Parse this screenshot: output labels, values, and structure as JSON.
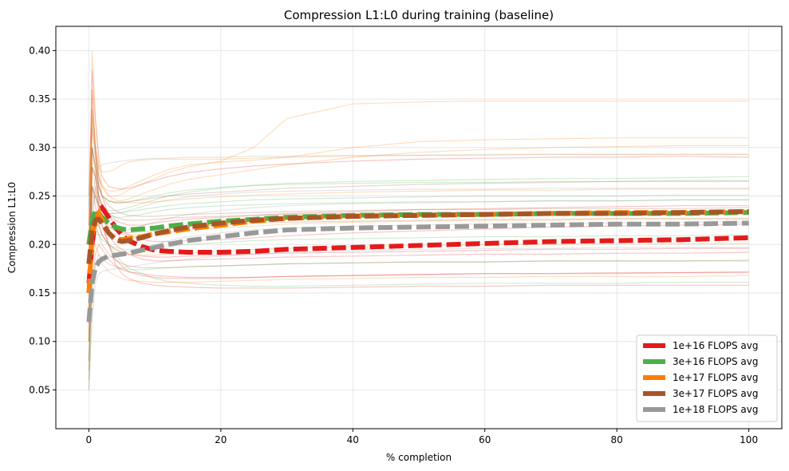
{
  "chart_data": {
    "type": "line",
    "title": "Compression L1:L0 during training (baseline)",
    "xlabel": "% completion",
    "ylabel": "Compression L1:L0",
    "xlim": [
      -5,
      105
    ],
    "ylim": [
      0.01,
      0.425
    ],
    "xticks": [
      0,
      20,
      40,
      60,
      80,
      100
    ],
    "xtick_labels": [
      "0",
      "20",
      "40",
      "60",
      "80",
      "100"
    ],
    "yticks": [
      0.05,
      0.1,
      0.15,
      0.2,
      0.25,
      0.3,
      0.35,
      0.4
    ],
    "ytick_labels": [
      "0.05",
      "0.10",
      "0.15",
      "0.20",
      "0.25",
      "0.30",
      "0.35",
      "0.40"
    ],
    "grid": true,
    "legend_position": "lower-right",
    "x": [
      0,
      0.5,
      1,
      1.5,
      2,
      3,
      4,
      5,
      6,
      8,
      10,
      12,
      15,
      20,
      25,
      30,
      40,
      50,
      60,
      70,
      80,
      90,
      100
    ],
    "series": [
      {
        "name": "1e+16 FLOPS avg",
        "color": "#e41a1c",
        "values": [
          0.16,
          0.2,
          0.225,
          0.235,
          0.238,
          0.228,
          0.218,
          0.21,
          0.204,
          0.198,
          0.194,
          0.193,
          0.192,
          0.192,
          0.193,
          0.195,
          0.197,
          0.199,
          0.201,
          0.203,
          0.204,
          0.205,
          0.207
        ]
      },
      {
        "name": "3e+16 FLOPS avg",
        "color": "#4daf4a",
        "values": [
          0.2,
          0.225,
          0.235,
          0.232,
          0.228,
          0.222,
          0.218,
          0.216,
          0.215,
          0.216,
          0.217,
          0.219,
          0.221,
          0.224,
          0.226,
          0.228,
          0.23,
          0.231,
          0.231,
          0.232,
          0.232,
          0.232,
          0.233
        ]
      },
      {
        "name": "1e+17 FLOPS avg",
        "color": "#ff7f00",
        "values": [
          0.15,
          0.21,
          0.225,
          0.232,
          0.225,
          0.212,
          0.206,
          0.205,
          0.206,
          0.208,
          0.211,
          0.213,
          0.216,
          0.22,
          0.224,
          0.227,
          0.229,
          0.23,
          0.231,
          0.232,
          0.233,
          0.233,
          0.234
        ]
      },
      {
        "name": "3e+17 FLOPS avg",
        "color": "#a65628",
        "values": [
          0.18,
          0.215,
          0.225,
          0.226,
          0.222,
          0.212,
          0.205,
          0.203,
          0.204,
          0.207,
          0.211,
          0.214,
          0.218,
          0.222,
          0.225,
          0.227,
          0.229,
          0.23,
          0.231,
          0.232,
          0.232,
          0.233,
          0.234
        ]
      },
      {
        "name": "1e+18 FLOPS avg",
        "color": "#999999",
        "values": [
          0.12,
          0.16,
          0.176,
          0.182,
          0.185,
          0.188,
          0.189,
          0.19,
          0.191,
          0.194,
          0.197,
          0.2,
          0.204,
          0.208,
          0.212,
          0.215,
          0.217,
          0.218,
          0.219,
          0.22,
          0.221,
          0.221,
          0.222
        ]
      }
    ],
    "background_runs": [
      {
        "color": "#e41a1c",
        "values": [
          0.12,
          0.3,
          0.28,
          0.24,
          0.22,
          0.2,
          0.18,
          0.17,
          0.165,
          0.16,
          0.158,
          0.157,
          0.156,
          0.155,
          0.155,
          0.155,
          0.156,
          0.157,
          0.157,
          0.158,
          0.158,
          0.158,
          0.158
        ]
      },
      {
        "color": "#e41a1c",
        "values": [
          0.2,
          0.34,
          0.3,
          0.25,
          0.22,
          0.2,
          0.185,
          0.178,
          0.172,
          0.168,
          0.166,
          0.165,
          0.165,
          0.165,
          0.166,
          0.167,
          0.168,
          0.169,
          0.17,
          0.17,
          0.171,
          0.171,
          0.172
        ]
      },
      {
        "color": "#e41a1c",
        "values": [
          0.1,
          0.22,
          0.26,
          0.24,
          0.23,
          0.21,
          0.2,
          0.195,
          0.19,
          0.185,
          0.183,
          0.183,
          0.184,
          0.185,
          0.186,
          0.187,
          0.188,
          0.189,
          0.19,
          0.19,
          0.191,
          0.191,
          0.192
        ]
      },
      {
        "color": "#e41a1c",
        "values": [
          0.25,
          0.36,
          0.3,
          0.27,
          0.25,
          0.23,
          0.22,
          0.215,
          0.21,
          0.205,
          0.203,
          0.203,
          0.204,
          0.205,
          0.207,
          0.209,
          0.212,
          0.214,
          0.216,
          0.218,
          0.219,
          0.22,
          0.221
        ]
      },
      {
        "color": "#e41a1c",
        "values": [
          0.18,
          0.28,
          0.27,
          0.25,
          0.24,
          0.23,
          0.225,
          0.222,
          0.22,
          0.22,
          0.222,
          0.224,
          0.226,
          0.228,
          0.23,
          0.232,
          0.234,
          0.236,
          0.237,
          0.238,
          0.239,
          0.24,
          0.24
        ]
      },
      {
        "color": "#e41a1c",
        "values": [
          0.22,
          0.38,
          0.33,
          0.29,
          0.27,
          0.26,
          0.258,
          0.257,
          0.258,
          0.262,
          0.266,
          0.27,
          0.274,
          0.278,
          0.281,
          0.283,
          0.286,
          0.288,
          0.289,
          0.29,
          0.29,
          0.291,
          0.29
        ]
      },
      {
        "color": "#e41a1c",
        "values": [
          0.08,
          0.16,
          0.19,
          0.2,
          0.195,
          0.185,
          0.178,
          0.174,
          0.172,
          0.17,
          0.168,
          0.167,
          0.166,
          0.166,
          0.166,
          0.167,
          0.168,
          0.169,
          0.17,
          0.17,
          0.17,
          0.171,
          0.171
        ]
      },
      {
        "color": "#e41a1c",
        "values": [
          0.15,
          0.26,
          0.24,
          0.22,
          0.21,
          0.2,
          0.195,
          0.192,
          0.19,
          0.188,
          0.187,
          0.187,
          0.188,
          0.189,
          0.19,
          0.191,
          0.192,
          0.193,
          0.194,
          0.195,
          0.195,
          0.196,
          0.196
        ]
      },
      {
        "color": "#4daf4a",
        "values": [
          0.06,
          0.18,
          0.22,
          0.22,
          0.21,
          0.2,
          0.19,
          0.182,
          0.176,
          0.17,
          0.165,
          0.162,
          0.16,
          0.158,
          0.157,
          0.157,
          0.158,
          0.159,
          0.16,
          0.16,
          0.16,
          0.161,
          0.161
        ]
      },
      {
        "color": "#4daf4a",
        "values": [
          0.2,
          0.3,
          0.27,
          0.25,
          0.24,
          0.235,
          0.235,
          0.236,
          0.238,
          0.242,
          0.246,
          0.25,
          0.254,
          0.258,
          0.261,
          0.263,
          0.265,
          0.266,
          0.267,
          0.268,
          0.268,
          0.269,
          0.27
        ]
      },
      {
        "color": "#4daf4a",
        "values": [
          0.14,
          0.24,
          0.25,
          0.24,
          0.235,
          0.23,
          0.228,
          0.228,
          0.229,
          0.231,
          0.234,
          0.236,
          0.238,
          0.24,
          0.241,
          0.242,
          0.243,
          0.244,
          0.244,
          0.245,
          0.245,
          0.246,
          0.246
        ]
      },
      {
        "color": "#4daf4a",
        "values": [
          0.1,
          0.2,
          0.22,
          0.21,
          0.205,
          0.2,
          0.197,
          0.195,
          0.195,
          0.196,
          0.197,
          0.198,
          0.2,
          0.202,
          0.204,
          0.205,
          0.206,
          0.207,
          0.208,
          0.208,
          0.209,
          0.209,
          0.21
        ]
      },
      {
        "color": "#4daf4a",
        "values": [
          0.24,
          0.33,
          0.29,
          0.26,
          0.25,
          0.245,
          0.243,
          0.243,
          0.244,
          0.247,
          0.25,
          0.253,
          0.256,
          0.259,
          0.261,
          0.262,
          0.263,
          0.264,
          0.264,
          0.265,
          0.265,
          0.266,
          0.266
        ]
      },
      {
        "color": "#4daf4a",
        "values": [
          0.05,
          0.14,
          0.18,
          0.19,
          0.185,
          0.18,
          0.177,
          0.175,
          0.174,
          0.174,
          0.175,
          0.176,
          0.177,
          0.178,
          0.179,
          0.18,
          0.181,
          0.182,
          0.182,
          0.183,
          0.183,
          0.183,
          0.184
        ]
      },
      {
        "color": "#4daf4a",
        "values": [
          0.18,
          0.26,
          0.25,
          0.24,
          0.235,
          0.232,
          0.232,
          0.233,
          0.234,
          0.236,
          0.238,
          0.24,
          0.242,
          0.244,
          0.246,
          0.247,
          0.248,
          0.249,
          0.25,
          0.25,
          0.25,
          0.251,
          0.251
        ]
      },
      {
        "color": "#ff7f00",
        "values": [
          0.12,
          0.4,
          0.33,
          0.28,
          0.26,
          0.25,
          0.25,
          0.252,
          0.256,
          0.262,
          0.268,
          0.274,
          0.28,
          0.286,
          0.3,
          0.33,
          0.345,
          0.347,
          0.348,
          0.348,
          0.348,
          0.348,
          0.348
        ]
      },
      {
        "color": "#ff7f00",
        "values": [
          0.16,
          0.36,
          0.3,
          0.27,
          0.26,
          0.255,
          0.255,
          0.257,
          0.26,
          0.266,
          0.272,
          0.277,
          0.282,
          0.285,
          0.287,
          0.29,
          0.3,
          0.306,
          0.308,
          0.309,
          0.31,
          0.31,
          0.31
        ]
      },
      {
        "color": "#ff7f00",
        "values": [
          0.1,
          0.3,
          0.28,
          0.26,
          0.25,
          0.245,
          0.244,
          0.245,
          0.247,
          0.252,
          0.257,
          0.262,
          0.267,
          0.272,
          0.277,
          0.282,
          0.29,
          0.295,
          0.298,
          0.3,
          0.301,
          0.302,
          0.302
        ]
      },
      {
        "color": "#ff7f00",
        "values": [
          0.2,
          0.34,
          0.3,
          0.27,
          0.26,
          0.25,
          0.246,
          0.244,
          0.243,
          0.243,
          0.244,
          0.245,
          0.247,
          0.249,
          0.251,
          0.252,
          0.254,
          0.255,
          0.256,
          0.256,
          0.257,
          0.257,
          0.257
        ]
      },
      {
        "color": "#ff7f00",
        "values": [
          0.08,
          0.22,
          0.23,
          0.22,
          0.21,
          0.2,
          0.195,
          0.192,
          0.19,
          0.189,
          0.189,
          0.19,
          0.191,
          0.193,
          0.195,
          0.196,
          0.198,
          0.199,
          0.2,
          0.2,
          0.201,
          0.201,
          0.201
        ]
      },
      {
        "color": "#ff7f00",
        "values": [
          0.14,
          0.28,
          0.26,
          0.24,
          0.23,
          0.22,
          0.214,
          0.211,
          0.21,
          0.21,
          0.211,
          0.213,
          0.215,
          0.217,
          0.219,
          0.221,
          0.223,
          0.224,
          0.225,
          0.225,
          0.226,
          0.226,
          0.226
        ]
      },
      {
        "color": "#ff7f00",
        "values": [
          0.06,
          0.18,
          0.2,
          0.19,
          0.18,
          0.172,
          0.168,
          0.165,
          0.163,
          0.162,
          0.161,
          0.161,
          0.161,
          0.162,
          0.163,
          0.164,
          0.165,
          0.166,
          0.166,
          0.167,
          0.167,
          0.167,
          0.168
        ]
      },
      {
        "color": "#ff7f00",
        "values": [
          0.22,
          0.33,
          0.3,
          0.28,
          0.275,
          0.275,
          0.278,
          0.282,
          0.285,
          0.287,
          0.288,
          0.288,
          0.288,
          0.288,
          0.289,
          0.29,
          0.291,
          0.292,
          0.292,
          0.293,
          0.293,
          0.293,
          0.293
        ]
      },
      {
        "color": "#a65628",
        "values": [
          0.1,
          0.32,
          0.29,
          0.26,
          0.25,
          0.245,
          0.243,
          0.243,
          0.244,
          0.246,
          0.248,
          0.25,
          0.252,
          0.254,
          0.256,
          0.258,
          0.26,
          0.262,
          0.263,
          0.264,
          0.265,
          0.265,
          0.265
        ]
      },
      {
        "color": "#a65628",
        "values": [
          0.16,
          0.3,
          0.28,
          0.26,
          0.25,
          0.24,
          0.235,
          0.232,
          0.23,
          0.229,
          0.229,
          0.23,
          0.231,
          0.232,
          0.233,
          0.234,
          0.235,
          0.236,
          0.236,
          0.237,
          0.237,
          0.237,
          0.238
        ]
      },
      {
        "color": "#a65628",
        "values": [
          0.07,
          0.2,
          0.22,
          0.21,
          0.2,
          0.19,
          0.184,
          0.18,
          0.178,
          0.176,
          0.176,
          0.176,
          0.177,
          0.178,
          0.179,
          0.18,
          0.181,
          0.182,
          0.182,
          0.183,
          0.183,
          0.183,
          0.183
        ]
      },
      {
        "color": "#a65628",
        "values": [
          0.19,
          0.28,
          0.27,
          0.25,
          0.24,
          0.232,
          0.228,
          0.226,
          0.225,
          0.225,
          0.226,
          0.227,
          0.228,
          0.229,
          0.23,
          0.231,
          0.232,
          0.233,
          0.233,
          0.234,
          0.234,
          0.234,
          0.235
        ]
      },
      {
        "color": "#a65628",
        "values": [
          0.13,
          0.26,
          0.25,
          0.235,
          0.225,
          0.218,
          0.214,
          0.212,
          0.212,
          0.213,
          0.214,
          0.216,
          0.218,
          0.22,
          0.222,
          0.223,
          0.224,
          0.225,
          0.226,
          0.226,
          0.227,
          0.227,
          0.227
        ]
      },
      {
        "color": "#999999",
        "values": [
          0.05,
          0.12,
          0.16,
          0.17,
          0.172,
          0.174,
          0.175,
          0.176,
          0.177,
          0.179,
          0.181,
          0.183,
          0.185,
          0.188,
          0.19,
          0.192,
          0.194,
          0.195,
          0.196,
          0.196,
          0.197,
          0.197,
          0.197
        ]
      },
      {
        "color": "#999999",
        "values": [
          0.12,
          0.2,
          0.21,
          0.21,
          0.21,
          0.21,
          0.211,
          0.213,
          0.215,
          0.219,
          0.223,
          0.227,
          0.231,
          0.235,
          0.238,
          0.24,
          0.242,
          0.243,
          0.244,
          0.245,
          0.245,
          0.246,
          0.246
        ]
      },
      {
        "color": "#999999",
        "values": [
          0.08,
          0.16,
          0.18,
          0.185,
          0.186,
          0.187,
          0.188,
          0.19,
          0.192,
          0.196,
          0.2,
          0.204,
          0.208,
          0.212,
          0.215,
          0.217,
          0.219,
          0.22,
          0.221,
          0.222,
          0.222,
          0.223,
          0.223
        ]
      },
      {
        "color": "#999999",
        "values": [
          0.2,
          0.26,
          0.25,
          0.24,
          0.235,
          0.232,
          0.232,
          0.233,
          0.235,
          0.239,
          0.243,
          0.246,
          0.249,
          0.252,
          0.254,
          0.255,
          0.256,
          0.257,
          0.257,
          0.258,
          0.258,
          0.258,
          0.258
        ]
      },
      {
        "color": "#999999",
        "values": [
          0.15,
          0.24,
          0.27,
          0.28,
          0.282,
          0.284,
          0.285,
          0.286,
          0.287,
          0.288,
          0.289,
          0.289,
          0.29,
          0.29,
          0.291,
          0.291,
          0.292,
          0.292,
          0.293,
          0.293,
          0.293,
          0.293,
          0.293
        ]
      }
    ]
  }
}
